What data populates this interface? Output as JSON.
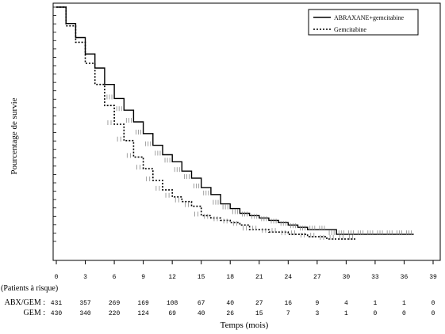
{
  "chart_data": {
    "type": "line",
    "ylabel": "Pourcentage de survie",
    "xlabel": "Temps (mois)",
    "xlim": [
      0,
      39
    ],
    "ylim": [
      0,
      1
    ],
    "x_ticks": [
      0,
      3,
      6,
      9,
      12,
      15,
      18,
      21,
      24,
      27,
      30,
      33,
      36,
      39
    ],
    "y_tick_labels_shown": false,
    "legend_position": "top-right",
    "series": [
      {
        "name": "ABRAXANE+gemcitabine",
        "style": "solid",
        "x": [
          0,
          1,
          2,
          3,
          4,
          5,
          6,
          7,
          8,
          9,
          10,
          11,
          12,
          13,
          14,
          15,
          16,
          17,
          18,
          19,
          20,
          21,
          22,
          23,
          24,
          25,
          26,
          27,
          28,
          29,
          30,
          31,
          32,
          33,
          34,
          35,
          36,
          37
        ],
        "y": [
          1.0,
          0.93,
          0.87,
          0.8,
          0.74,
          0.67,
          0.61,
          0.56,
          0.51,
          0.46,
          0.41,
          0.37,
          0.34,
          0.3,
          0.27,
          0.23,
          0.2,
          0.16,
          0.14,
          0.12,
          0.11,
          0.1,
          0.09,
          0.08,
          0.07,
          0.06,
          0.05,
          0.05,
          0.05,
          0.03,
          0.03,
          0.03,
          0.03,
          0.03,
          0.03,
          0.03,
          0.03,
          0.03
        ]
      },
      {
        "name": "Gemcitabine",
        "style": "dotted",
        "x": [
          0,
          1,
          2,
          3,
          4,
          5,
          6,
          7,
          8,
          9,
          10,
          11,
          12,
          13,
          14,
          15,
          16,
          17,
          18,
          19,
          20,
          21,
          22,
          23,
          24,
          25,
          26,
          27,
          28,
          29,
          30,
          31
        ],
        "y": [
          1.0,
          0.92,
          0.85,
          0.76,
          0.67,
          0.58,
          0.5,
          0.43,
          0.36,
          0.31,
          0.26,
          0.22,
          0.19,
          0.17,
          0.15,
          0.11,
          0.1,
          0.09,
          0.08,
          0.07,
          0.05,
          0.05,
          0.04,
          0.04,
          0.03,
          0.03,
          0.02,
          0.02,
          0.01,
          0.01,
          0.01,
          0.01
        ]
      }
    ],
    "risk_table": {
      "title": "(Patients à risque)",
      "rows": [
        {
          "label": "ABX/GEM :",
          "values": [
            431,
            357,
            269,
            169,
            108,
            67,
            40,
            27,
            16,
            9,
            4,
            1,
            1,
            0
          ]
        },
        {
          "label": "GEM :",
          "values": [
            430,
            340,
            220,
            124,
            69,
            40,
            26,
            15,
            7,
            3,
            1,
            0,
            0,
            0
          ]
        }
      ]
    }
  }
}
